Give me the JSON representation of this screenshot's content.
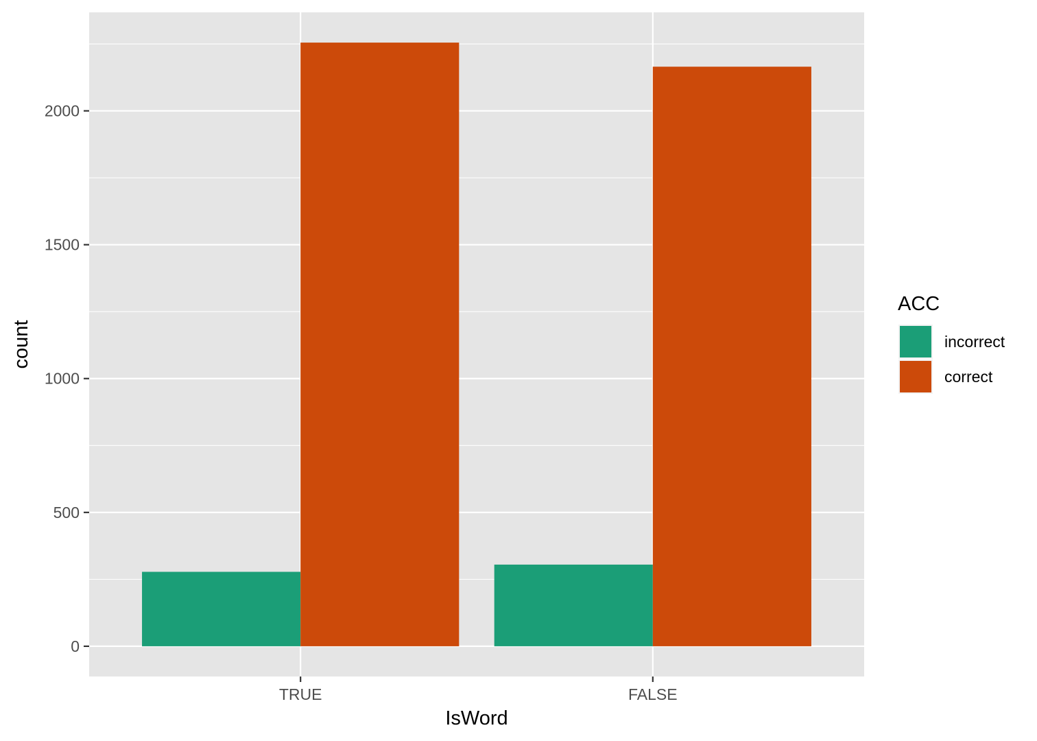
{
  "chart_data": {
    "type": "bar",
    "title": "",
    "xlabel": "IsWord",
    "ylabel": "count",
    "categories": [
      "TRUE",
      "FALSE"
    ],
    "series": [
      {
        "name": "incorrect",
        "values": [
          278,
          305
        ],
        "color": "#1B9E77"
      },
      {
        "name": "correct",
        "values": [
          2255,
          2165
        ],
        "color": "#D95F02"
      }
    ],
    "ylim": [
      -113,
      2368
    ],
    "yticks": [
      0,
      500,
      1000,
      1500,
      2000
    ],
    "yticks_minor": [
      250,
      750,
      1250,
      1750,
      2250
    ],
    "grid": true,
    "legend": {
      "title": "ACC",
      "position": "right"
    },
    "colors": {
      "panel_background": "#E5E5E5",
      "grid": "#FFFFFF",
      "bar_incorrect": "#1B9E77",
      "bar_correct": "#CC4A0A"
    }
  }
}
